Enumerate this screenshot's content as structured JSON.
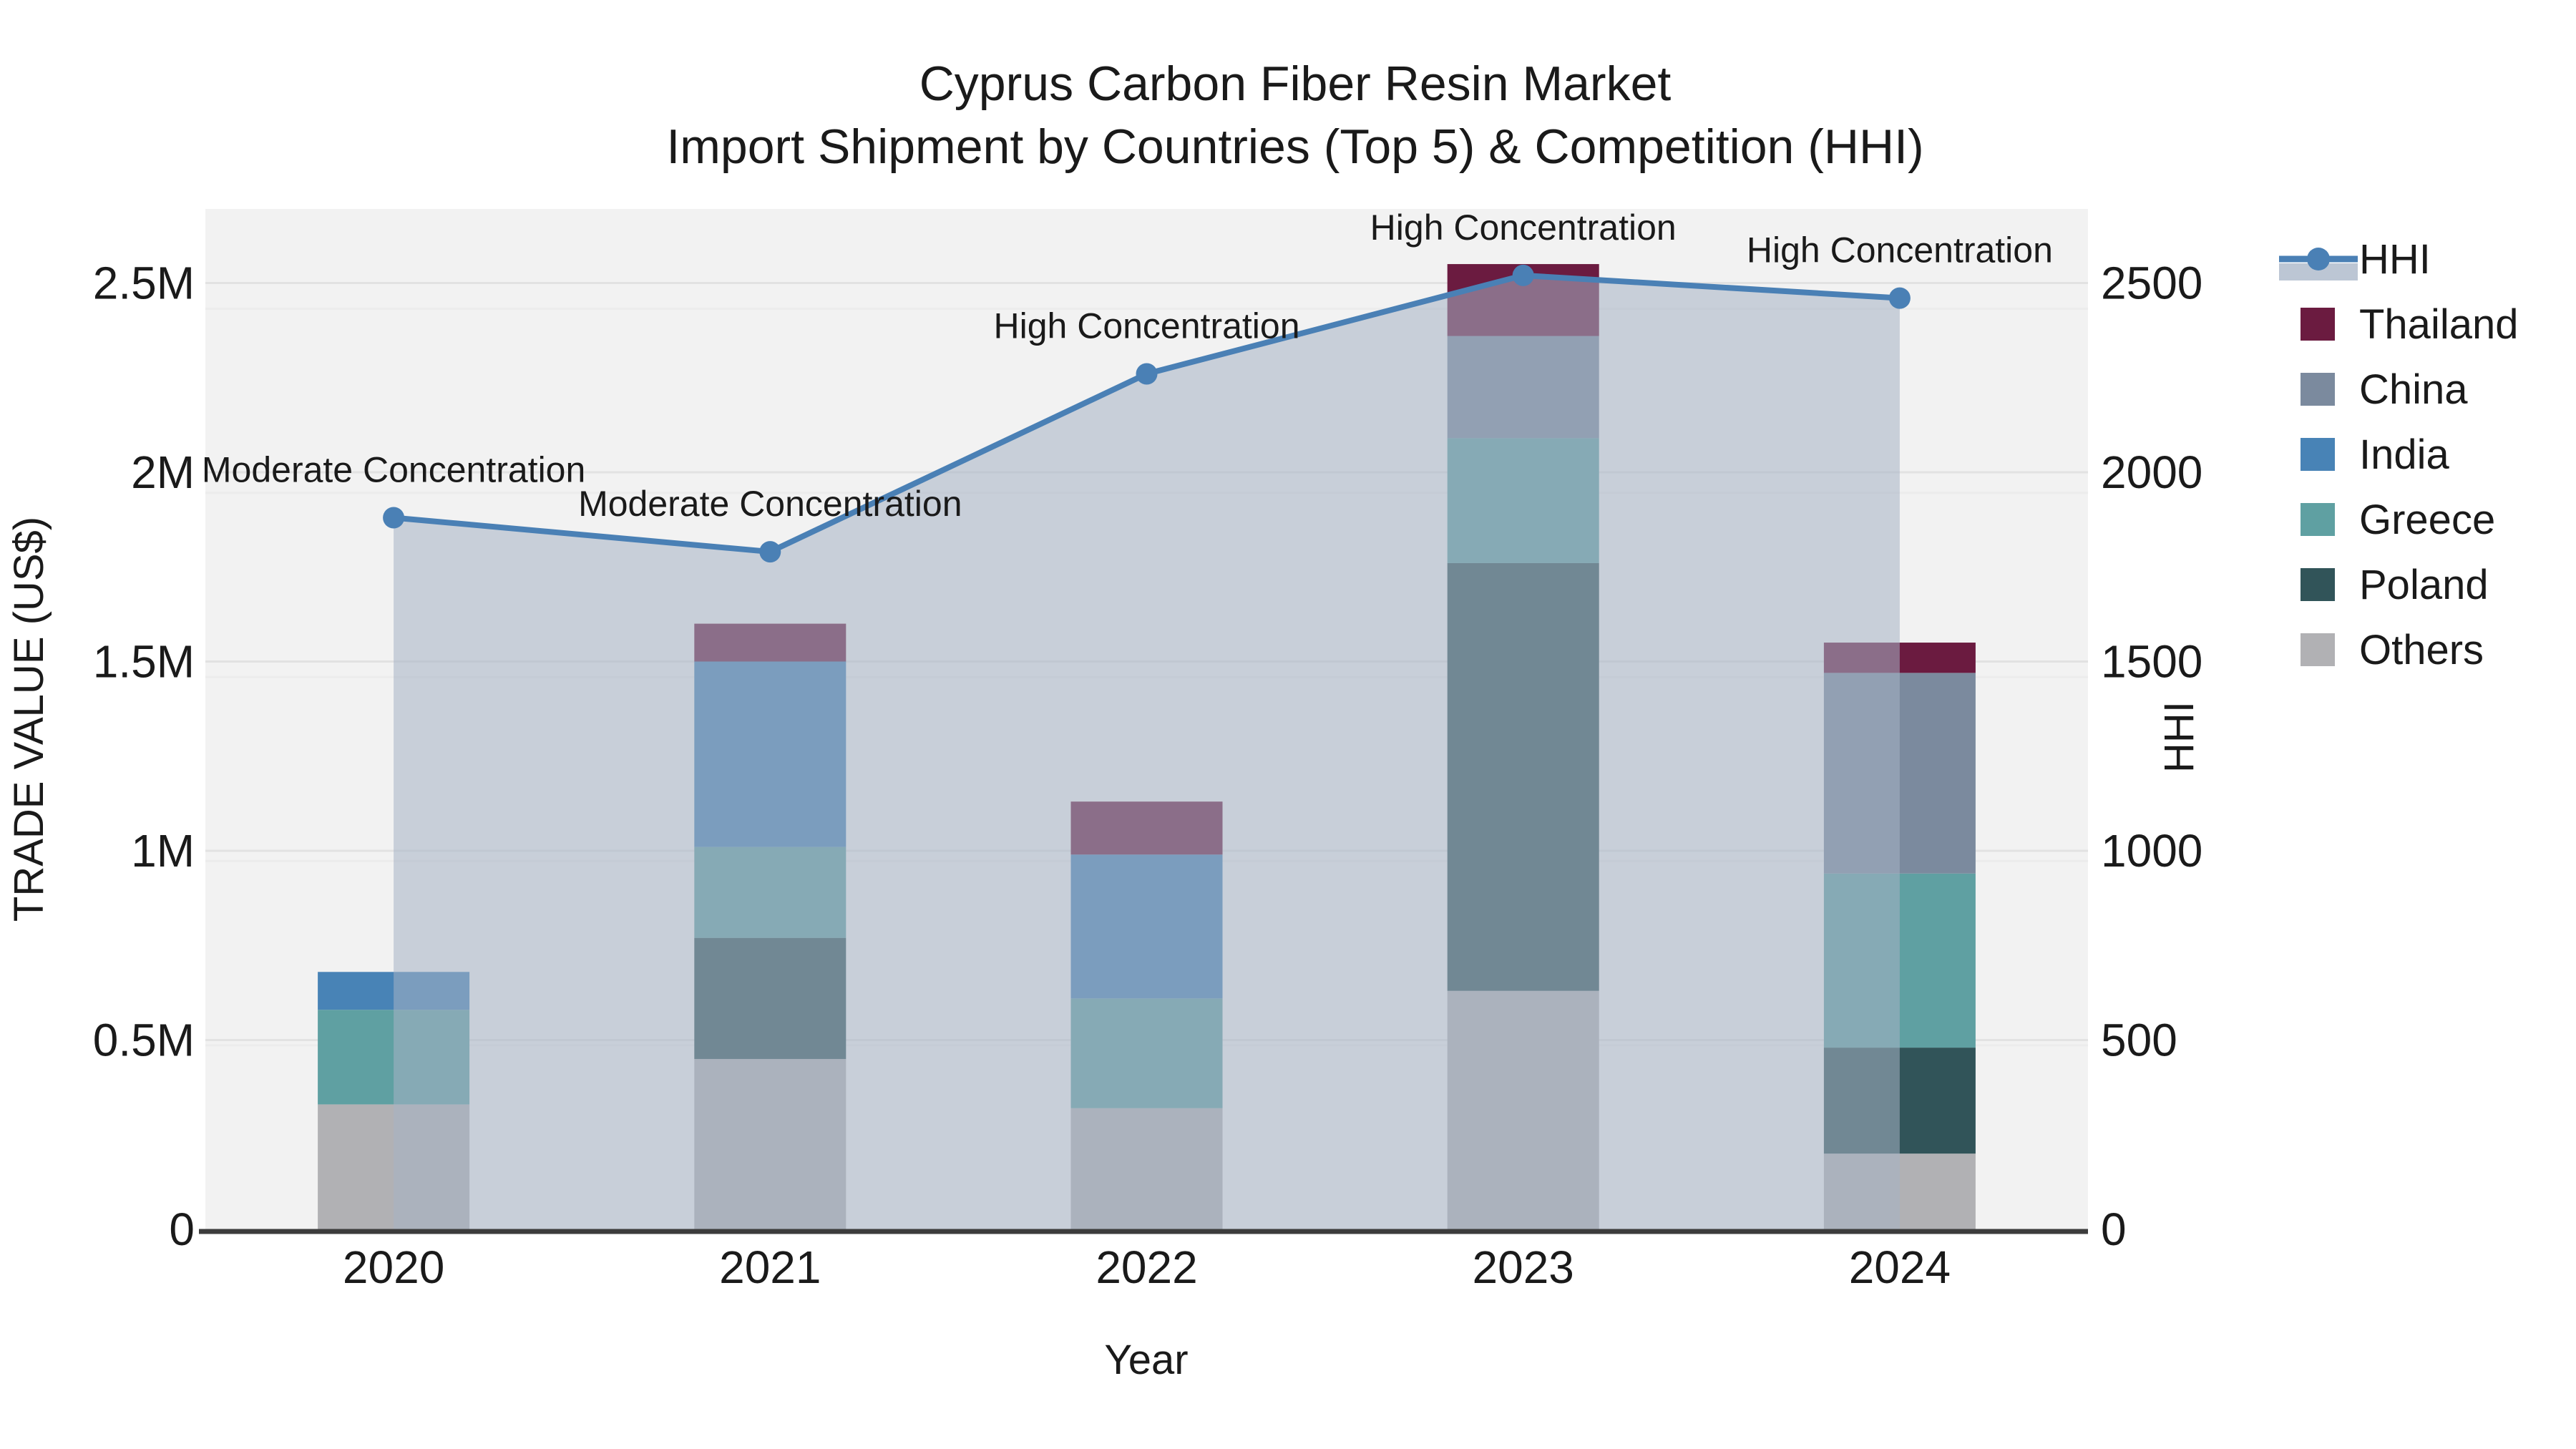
{
  "title": {
    "line1": "Cyprus Carbon Fiber Resin Market",
    "line2": "Import Shipment by Countries (Top 5) & Competition (HHI)"
  },
  "chart_data": {
    "type": "bar",
    "subtype": "stacked-bars-with-line-overlay",
    "categories": [
      "2020",
      "2021",
      "2022",
      "2023",
      "2024"
    ],
    "xlabel": "Year",
    "ylabel_left": "TRADE VALUE (US$)",
    "ylabel_right": "HHI",
    "left_ticks": [
      {
        "label": "0",
        "value_musd": 0.0
      },
      {
        "label": "0.5M",
        "value_musd": 0.5
      },
      {
        "label": "1M",
        "value_musd": 1.0
      },
      {
        "label": "1.5M",
        "value_musd": 1.5
      },
      {
        "label": "2M",
        "value_musd": 2.0
      },
      {
        "label": "2.5M",
        "value_musd": 2.5
      }
    ],
    "right_ticks": [
      {
        "label": "0",
        "value": 0
      },
      {
        "label": "500",
        "value": 500
      },
      {
        "label": "1000",
        "value": 1000
      },
      {
        "label": "1500",
        "value": 1500
      },
      {
        "label": "2000",
        "value": 2000
      },
      {
        "label": "2500",
        "value": 2500
      }
    ],
    "ylim_left_musd": [
      0,
      2.696
    ],
    "ylim_right": [
      0,
      2696
    ],
    "grid": true,
    "bar_series_bottom_to_top": [
      {
        "name": "Others",
        "color": "#b1b1b4",
        "values_musd": [
          0.33,
          0.45,
          0.32,
          0.63,
          0.2
        ]
      },
      {
        "name": "Poland",
        "color": "#315459",
        "values_musd": [
          0.0,
          0.32,
          0.0,
          1.13,
          0.28
        ]
      },
      {
        "name": "Greece",
        "color": "#5fa0a2",
        "values_musd": [
          0.25,
          0.24,
          0.29,
          0.33,
          0.46
        ]
      },
      {
        "name": "India",
        "color": "#4883b6",
        "values_musd": [
          0.1,
          0.49,
          0.38,
          0.0,
          0.0
        ]
      },
      {
        "name": "China",
        "color": "#7b8a9e",
        "values_musd": [
          0.0,
          0.0,
          0.0,
          0.27,
          0.53
        ]
      },
      {
        "name": "Thailand",
        "color": "#6b1b40",
        "values_musd": [
          0.0,
          0.1,
          0.14,
          0.19,
          0.08
        ]
      }
    ],
    "bar_totals_musd": [
      0.68,
      1.6,
      1.13,
      2.55,
      1.55
    ],
    "line_series": {
      "name": "HHI",
      "color": "#4a80b5",
      "fill_color": "rgba(166,179,197,0.55)",
      "values": [
        1880,
        1790,
        2260,
        2520,
        2460
      ]
    },
    "annotations": [
      {
        "x_index": 0,
        "text": "Moderate Concentration"
      },
      {
        "x_index": 1,
        "text": "Moderate Concentration"
      },
      {
        "x_index": 2,
        "text": "High Concentration"
      },
      {
        "x_index": 3,
        "text": "High Concentration"
      },
      {
        "x_index": 4,
        "text": "High Concentration"
      }
    ],
    "legend_position": "right-top-outside",
    "legend": [
      {
        "label": "HHI",
        "type": "line"
      },
      {
        "label": "Thailand",
        "type": "swatch"
      },
      {
        "label": "China",
        "type": "swatch"
      },
      {
        "label": "India",
        "type": "swatch"
      },
      {
        "label": "Greece",
        "type": "swatch"
      },
      {
        "label": "Poland",
        "type": "swatch"
      },
      {
        "label": "Others",
        "type": "swatch"
      }
    ]
  },
  "colors": {
    "figure_background": "#ffffff",
    "plot_background": "#f2f2f2",
    "gridline_primary": "#e2e2e2",
    "gridline_secondary": "#ececec",
    "axis_line": "#3c3c3c",
    "text": "#1a1a1a"
  }
}
